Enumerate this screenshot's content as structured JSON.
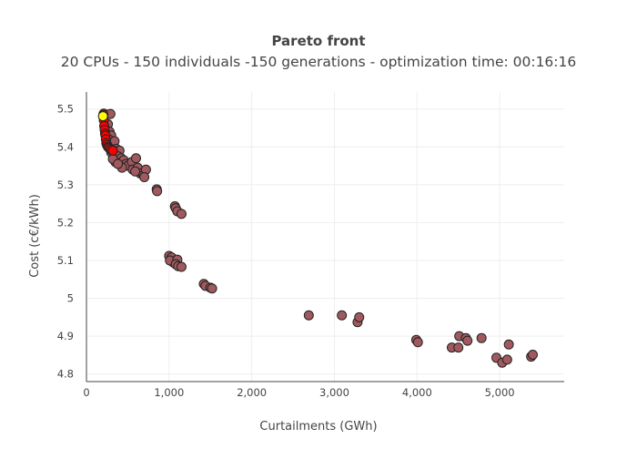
{
  "chart_data": {
    "type": "scatter",
    "title": "Pareto front",
    "subtitle": "20 CPUs - 150 individuals -150 generations - optimization time: 00:16:16",
    "xlabel": "Curtailments (GWh)",
    "ylabel": "Cost (c€/kWh)",
    "xlim": [
      0,
      5780
    ],
    "ylim": [
      4.78,
      5.545
    ],
    "x_ticks": [
      0,
      1000,
      2000,
      3000,
      4000,
      5000
    ],
    "x_tick_labels": [
      "0",
      "1,000",
      "2,000",
      "3,000",
      "4,000",
      "5,000"
    ],
    "y_ticks": [
      4.8,
      4.9,
      5.0,
      5.1,
      5.2,
      5.3,
      5.4,
      5.5
    ],
    "y_tick_labels": [
      "4.8",
      "4.9",
      "5",
      "5.1",
      "5.2",
      "5.3",
      "5.4",
      "5.5"
    ],
    "grid": true,
    "legend": "none",
    "colors": {
      "population": "#a05a5f",
      "front": "#ff0000",
      "best": "#ffff00",
      "outline": "#222222",
      "axis": "#444444",
      "grid": "#eeeeee"
    },
    "series": [
      {
        "color": "#a05a5f",
        "points": [
          [
            210,
            5.488
          ],
          [
            290,
            5.487
          ],
          [
            260,
            5.46
          ],
          [
            280,
            5.44
          ],
          [
            300,
            5.43
          ],
          [
            270,
            5.42
          ],
          [
            320,
            5.41
          ],
          [
            250,
            5.405
          ],
          [
            340,
            5.415
          ],
          [
            360,
            5.395
          ],
          [
            330,
            5.39
          ],
          [
            300,
            5.385
          ],
          [
            400,
            5.39
          ],
          [
            380,
            5.375
          ],
          [
            420,
            5.37
          ],
          [
            350,
            5.36
          ],
          [
            450,
            5.365
          ],
          [
            480,
            5.355
          ],
          [
            500,
            5.35
          ],
          [
            430,
            5.345
          ],
          [
            550,
            5.36
          ],
          [
            600,
            5.37
          ],
          [
            560,
            5.34
          ],
          [
            620,
            5.345
          ],
          [
            650,
            5.33
          ],
          [
            690,
            5.325
          ],
          [
            720,
            5.34
          ],
          [
            700,
            5.32
          ],
          [
            320,
            5.368
          ],
          [
            380,
            5.355
          ],
          [
            590,
            5.335
          ],
          [
            850,
            5.288
          ],
          [
            855,
            5.283
          ],
          [
            1070,
            5.243
          ],
          [
            1080,
            5.238
          ],
          [
            1100,
            5.23
          ],
          [
            1150,
            5.223
          ],
          [
            1000,
            5.112
          ],
          [
            1030,
            5.108
          ],
          [
            1050,
            5.095
          ],
          [
            1010,
            5.1
          ],
          [
            1100,
            5.102
          ],
          [
            1080,
            5.09
          ],
          [
            1110,
            5.085
          ],
          [
            1150,
            5.083
          ],
          [
            1420,
            5.038
          ],
          [
            1440,
            5.033
          ],
          [
            1500,
            5.028
          ],
          [
            1520,
            5.026
          ],
          [
            2690,
            4.955
          ],
          [
            3090,
            4.955
          ],
          [
            3280,
            4.937
          ],
          [
            3300,
            4.95
          ],
          [
            3990,
            4.89
          ],
          [
            4010,
            4.884
          ],
          [
            4420,
            4.87
          ],
          [
            4500,
            4.87
          ],
          [
            4510,
            4.9
          ],
          [
            4590,
            4.895
          ],
          [
            4610,
            4.888
          ],
          [
            4780,
            4.895
          ],
          [
            4960,
            4.843
          ],
          [
            5030,
            4.83
          ],
          [
            5090,
            4.838
          ],
          [
            5110,
            4.878
          ],
          [
            5380,
            4.846
          ],
          [
            5400,
            4.851
          ]
        ]
      },
      {
        "color": "#ff0000",
        "points": [
          [
            205,
            5.485
          ],
          [
            210,
            5.47
          ],
          [
            215,
            5.455
          ],
          [
            220,
            5.445
          ],
          [
            225,
            5.435
          ],
          [
            230,
            5.43
          ],
          [
            235,
            5.42
          ],
          [
            240,
            5.41
          ],
          [
            250,
            5.405
          ],
          [
            260,
            5.4
          ],
          [
            270,
            5.398
          ],
          [
            285,
            5.395
          ],
          [
            300,
            5.392
          ],
          [
            320,
            5.39
          ]
        ]
      },
      {
        "color": "#ffff00",
        "points": [
          [
            200,
            5.481
          ]
        ]
      }
    ]
  }
}
